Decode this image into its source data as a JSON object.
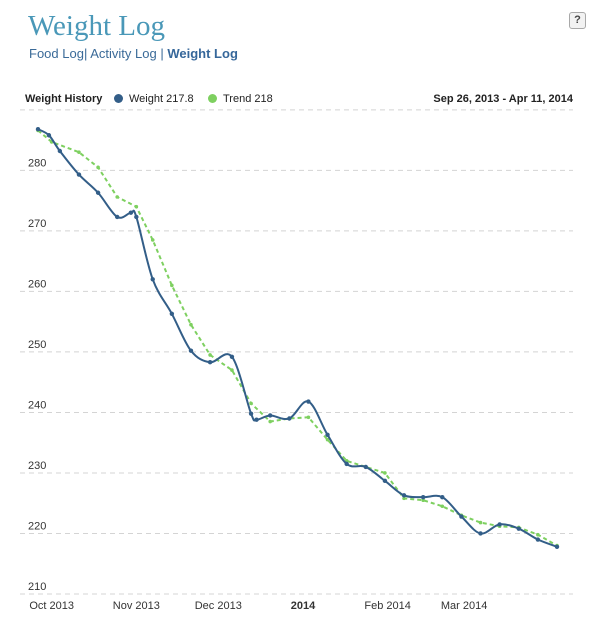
{
  "header": {
    "title": "Weight Log",
    "help_label": "?"
  },
  "nav": {
    "food_log": "Food Log",
    "activity_log": "Activity Log",
    "weight_log": "Weight Log",
    "separator": "|"
  },
  "legend": {
    "title": "Weight History",
    "weight_label": "Weight 217.8",
    "trend_label": "Trend 218",
    "date_range": "Sep 26, 2013 - Apr 11, 2014"
  },
  "colors": {
    "weight": "#335e88",
    "trend": "#7ed060",
    "grid": "#d4d4d4",
    "title": "#4a98b8"
  },
  "chart_data": {
    "type": "line",
    "x_range": [
      "2013-09-26",
      "2014-04-11"
    ],
    "ylim": [
      210,
      287
    ],
    "y_ticks": [
      210,
      220,
      230,
      240,
      250,
      260,
      270,
      280
    ],
    "x_ticks": [
      {
        "date": "2013-10-01",
        "label": "Oct 2013",
        "bold": false
      },
      {
        "date": "2013-11-01",
        "label": "Nov 2013",
        "bold": false
      },
      {
        "date": "2013-12-01",
        "label": "Dec 2013",
        "bold": false
      },
      {
        "date": "2014-01-01",
        "label": "2014",
        "bold": true
      },
      {
        "date": "2014-02-01",
        "label": "Feb 2014",
        "bold": false
      },
      {
        "date": "2014-03-01",
        "label": "Mar 2014",
        "bold": false
      }
    ],
    "grid": true,
    "legend_position": "top",
    "series": [
      {
        "name": "Weight 217.8",
        "style": "solid",
        "points": [
          [
            "2013-09-26",
            286.8
          ],
          [
            "2013-09-30",
            285.8
          ],
          [
            "2013-10-04",
            283.2
          ],
          [
            "2013-10-11",
            279.3
          ],
          [
            "2013-10-18",
            276.3
          ],
          [
            "2013-10-25",
            272.3
          ],
          [
            "2013-10-30",
            273.0
          ],
          [
            "2013-11-01",
            272.3
          ],
          [
            "2013-11-07",
            262.0
          ],
          [
            "2013-11-14",
            256.3
          ],
          [
            "2013-11-21",
            250.2
          ],
          [
            "2013-11-28",
            248.3
          ],
          [
            "2013-12-06",
            249.2
          ],
          [
            "2013-12-13",
            239.8
          ],
          [
            "2013-12-15",
            238.8
          ],
          [
            "2013-12-20",
            239.5
          ],
          [
            "2013-12-27",
            239.0
          ],
          [
            "2014-01-03",
            241.8
          ],
          [
            "2014-01-10",
            236.3
          ],
          [
            "2014-01-17",
            231.5
          ],
          [
            "2014-01-24",
            231.0
          ],
          [
            "2014-01-31",
            228.7
          ],
          [
            "2014-02-07",
            226.3
          ],
          [
            "2014-02-14",
            226.0
          ],
          [
            "2014-02-21",
            226.0
          ],
          [
            "2014-02-28",
            222.8
          ],
          [
            "2014-03-07",
            220.0
          ],
          [
            "2014-03-14",
            221.5
          ],
          [
            "2014-03-21",
            220.8
          ],
          [
            "2014-03-28",
            219.0
          ],
          [
            "2014-04-04",
            217.8
          ]
        ]
      },
      {
        "name": "Trend 218",
        "style": "dashed",
        "points": [
          [
            "2013-09-26",
            286.6
          ],
          [
            "2013-10-01",
            284.7
          ],
          [
            "2013-10-11",
            283.0
          ],
          [
            "2013-10-18",
            280.5
          ],
          [
            "2013-10-25",
            275.6
          ],
          [
            "2013-11-01",
            274.0
          ],
          [
            "2013-11-07",
            268.5
          ],
          [
            "2013-11-14",
            261.0
          ],
          [
            "2013-11-21",
            254.5
          ],
          [
            "2013-11-28",
            249.5
          ],
          [
            "2013-12-06",
            247.0
          ],
          [
            "2013-12-13",
            241.5
          ],
          [
            "2013-12-20",
            238.5
          ],
          [
            "2013-12-27",
            239.0
          ],
          [
            "2014-01-03",
            239.2
          ],
          [
            "2014-01-10",
            235.5
          ],
          [
            "2014-01-17",
            232.0
          ],
          [
            "2014-01-24",
            231.0
          ],
          [
            "2014-01-31",
            230.0
          ],
          [
            "2014-02-07",
            225.8
          ],
          [
            "2014-02-14",
            225.5
          ],
          [
            "2014-02-21",
            224.5
          ],
          [
            "2014-02-28",
            223.0
          ],
          [
            "2014-03-07",
            221.8
          ],
          [
            "2014-03-14",
            221.2
          ],
          [
            "2014-03-21",
            221.0
          ],
          [
            "2014-03-28",
            219.8
          ],
          [
            "2014-04-04",
            218.0
          ]
        ]
      }
    ]
  }
}
